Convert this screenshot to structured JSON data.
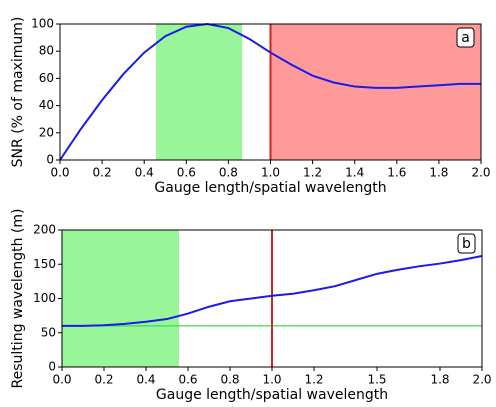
{
  "chart_data": [
    {
      "type": "line",
      "x_label": "Gauge length/spatial wavelength",
      "y_label": "SNR (% of maximum)",
      "annotation": "a",
      "x": [
        0,
        0.1,
        0.2,
        0.3,
        0.4,
        0.5,
        0.6,
        0.7,
        0.8,
        0.9,
        1.0,
        1.1,
        1.2,
        1.3,
        1.4,
        1.5,
        1.6,
        1.7,
        1.8,
        1.9,
        2.0
      ],
      "series": [
        {
          "color": "#1a1aee",
          "values": [
            0,
            23,
            44,
            63,
            79,
            91,
            98,
            100,
            97,
            89,
            79,
            70,
            62,
            57,
            54,
            53,
            53,
            54,
            55,
            56,
            56
          ]
        }
      ],
      "spans": [
        {
          "x": [
            0.456,
            0.865
          ],
          "color": "#99f59a"
        },
        {
          "x": [
            1.0,
            2.0
          ],
          "color": "#fe9a9a"
        }
      ],
      "vlines": [
        {
          "x": 1.0,
          "color": "#d42020"
        }
      ],
      "hlines": [],
      "xlim": [
        0,
        2
      ],
      "xticks": [
        {
          "value": 0,
          "label": "0.0"
        },
        {
          "value": 0.2,
          "label": "0.2"
        },
        {
          "value": 0.4,
          "label": "0.4"
        },
        {
          "value": 0.6,
          "label": "0.6"
        },
        {
          "value": 0.8,
          "label": "0.8"
        },
        {
          "value": 1.0,
          "label": "1.0"
        },
        {
          "value": 1.2,
          "label": "1.2"
        },
        {
          "value": 1.4,
          "label": "1.4"
        },
        {
          "value": 1.6,
          "label": "1.6"
        },
        {
          "value": 1.8,
          "label": "1.8"
        },
        {
          "value": 2.0,
          "label": "2.0"
        }
      ],
      "ylim": [
        0,
        100
      ],
      "yticks": [
        0,
        20,
        40,
        60,
        80,
        100
      ]
    },
    {
      "type": "line",
      "x_label": "Gauge length/spatial wavelength",
      "y_label": "Resulting wavelength (m)",
      "annotation": "b",
      "x": [
        0,
        0.1,
        0.2,
        0.3,
        0.4,
        0.5,
        0.6,
        0.7,
        0.8,
        0.9,
        1.0,
        1.1,
        1.2,
        1.3,
        1.4,
        1.5,
        1.6,
        1.7,
        1.8,
        1.9,
        2.0
      ],
      "series": [
        {
          "color": "#1a1aee",
          "values": [
            60,
            60,
            61,
            63,
            66,
            70,
            78,
            88,
            96,
            100,
            104,
            107,
            112,
            118,
            127,
            136,
            142,
            147,
            151,
            156,
            162
          ]
        }
      ],
      "spans": [
        {
          "x": [
            0,
            0.557
          ],
          "color": "#99f59a"
        }
      ],
      "vlines": [
        {
          "x": 1.0,
          "color": "#d42020"
        }
      ],
      "hlines": [
        {
          "y": 60,
          "color": "#40dd40"
        }
      ],
      "xlim": [
        0,
        2
      ],
      "xticks": [
        {
          "value": 0,
          "label": "0.0"
        },
        {
          "value": 0.2,
          "label": "0.2"
        },
        {
          "value": 0.4,
          "label": "0.4"
        },
        {
          "value": 0.6,
          "label": "0.6"
        },
        {
          "value": 0.8,
          "label": "0.8"
        },
        {
          "value": 1.0,
          "label": "1.0"
        },
        {
          "value": 1.2,
          "label": "1.2"
        },
        {
          "value": 1.5,
          "label": "1.5"
        },
        {
          "value": 1.8,
          "label": "1.8"
        },
        {
          "value": 2.0,
          "label": "2.0"
        }
      ],
      "ylim": [
        0,
        200
      ],
      "yticks": [
        0,
        50,
        100,
        150,
        200
      ]
    }
  ]
}
